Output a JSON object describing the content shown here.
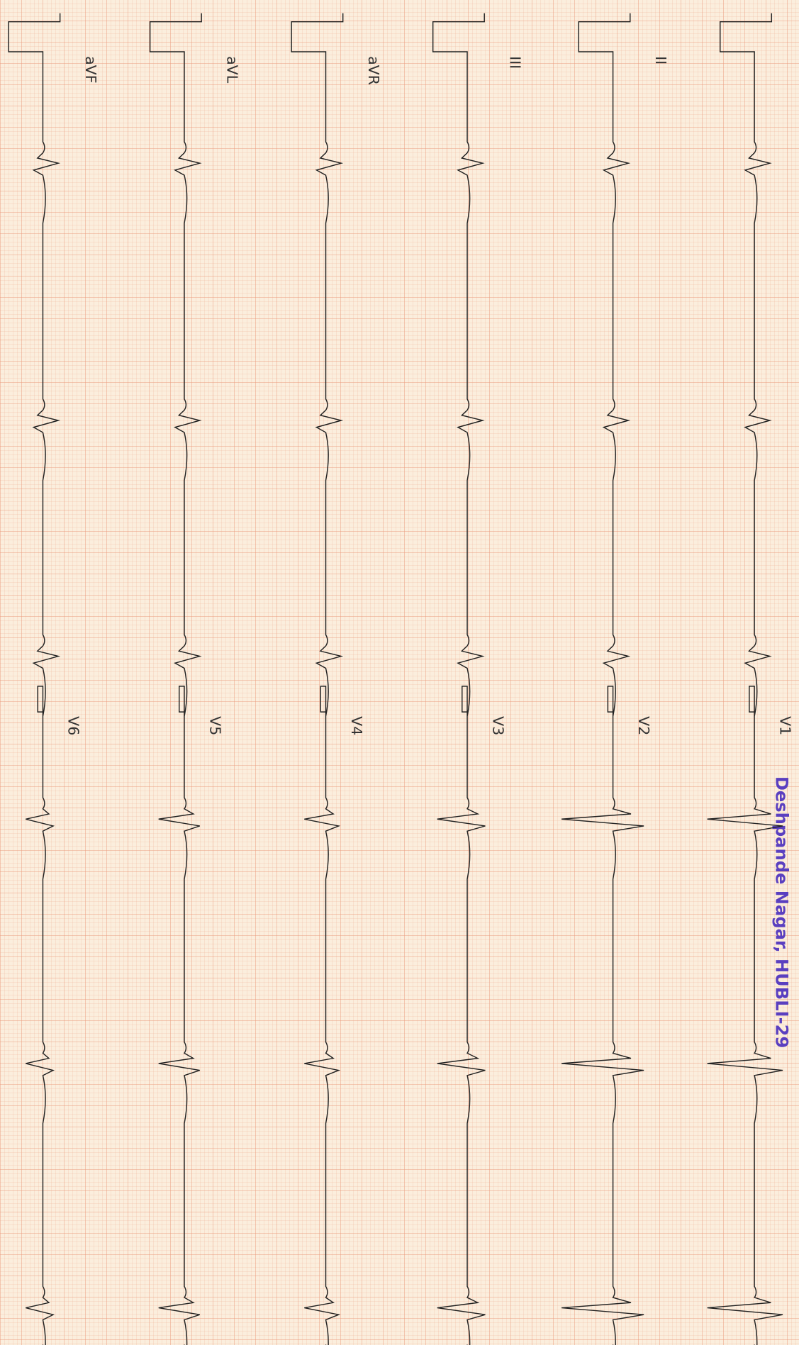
{
  "limb_leads": [
    "II",
    "III",
    "aVR",
    "aVL",
    "aVF"
  ],
  "chest_leads": [
    "V1",
    "V2",
    "V3",
    "V4",
    "V5",
    "V6"
  ],
  "stamp": "Deshpande Nagar, HUBLI-29"
}
